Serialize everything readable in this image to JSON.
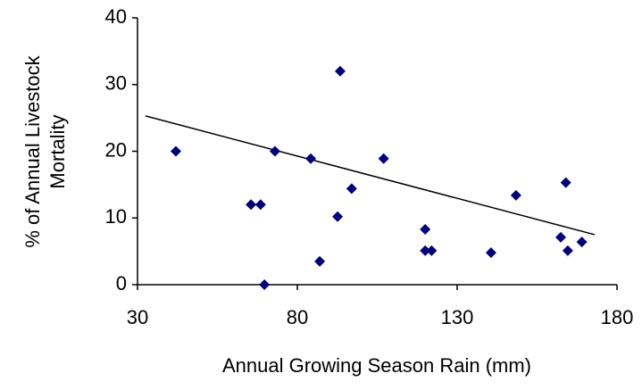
{
  "chart_data": {
    "type": "scatter",
    "xlabel": "Annual Growing Season Rain (mm)",
    "ylabel": [
      "% of Annual Livestock",
      "Mortality"
    ],
    "series": [
      {
        "name": "Mortality",
        "color": "#000080",
        "x": [
          42,
          65.5,
          68.5,
          69.7,
          73,
          84.2,
          87,
          92.6,
          93.4,
          97,
          107,
          120,
          120,
          122,
          140.6,
          148.4,
          162.4,
          164,
          164.6,
          169
        ],
        "values": [
          20,
          12,
          12,
          0,
          20,
          18.9,
          3.5,
          10.2,
          32,
          14.4,
          18.9,
          8.3,
          5.1,
          5.1,
          4.8,
          13.4,
          7.1,
          15.3,
          5.1,
          6.4
        ]
      }
    ],
    "trendline": {
      "x": [
        32.5,
        173
      ],
      "values": [
        25.3,
        7.5
      ],
      "color": "#000000"
    },
    "xlim": [
      30,
      180
    ],
    "xticks": [
      30,
      80,
      130,
      180
    ],
    "ylim": [
      0,
      40
    ],
    "yticks": [
      0,
      10,
      20,
      30,
      40
    ],
    "grid": false
  }
}
